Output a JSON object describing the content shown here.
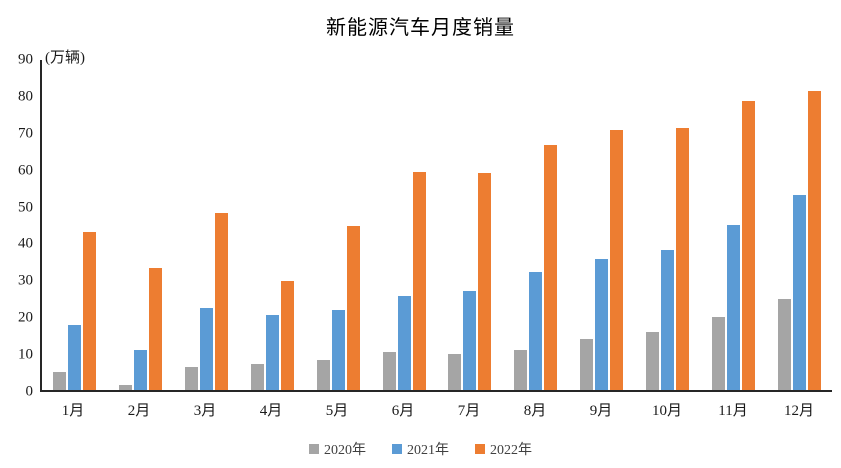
{
  "chart_data": {
    "type": "bar",
    "title": "新能源汽车月度销量",
    "ylabel": "(万辆)",
    "xlabel": "",
    "categories": [
      "1月",
      "2月",
      "3月",
      "4月",
      "5月",
      "6月",
      "7月",
      "8月",
      "9月",
      "10月",
      "11月",
      "12月"
    ],
    "series": [
      {
        "name": "2020年",
        "color": "#a5a5a5",
        "values": [
          5.0,
          1.4,
          6.3,
          7.2,
          8.1,
          10.3,
          9.7,
          10.8,
          14.0,
          15.9,
          20.0,
          24.8
        ]
      },
      {
        "name": "2021年",
        "color": "#5b9bd5",
        "values": [
          17.8,
          10.8,
          22.5,
          20.5,
          21.7,
          25.6,
          27.1,
          32.1,
          35.7,
          38.3,
          45.0,
          53.1
        ]
      },
      {
        "name": "2022年",
        "color": "#ed7d31",
        "values": [
          43.1,
          33.4,
          48.4,
          29.8,
          44.7,
          59.5,
          59.3,
          66.7,
          71.0,
          71.4,
          78.8,
          81.5
        ]
      }
    ],
    "ylim": [
      0,
      90
    ],
    "yticks": [
      0,
      10,
      20,
      30,
      40,
      50,
      60,
      70,
      80,
      90
    ],
    "grid": false,
    "legend_position": "bottom",
    "axis_color": "#262626",
    "background_color": "#ffffff"
  }
}
